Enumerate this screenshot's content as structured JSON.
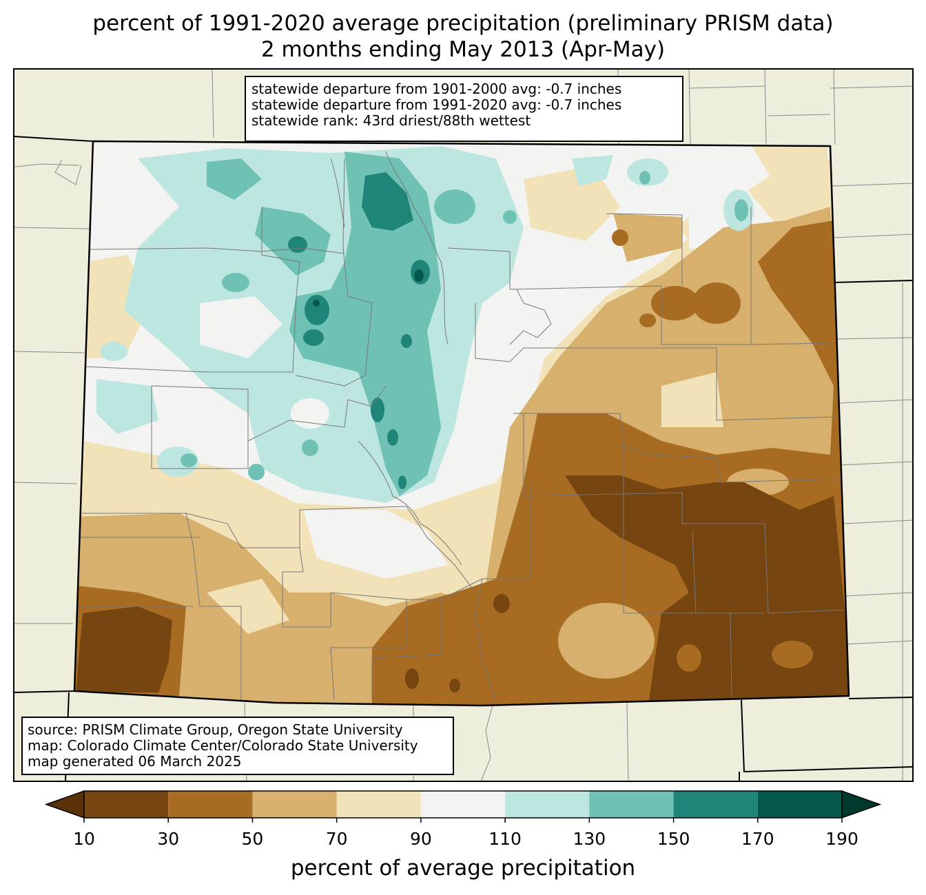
{
  "title": {
    "line1": "percent of 1991-2020 average precipitation (preliminary PRISM data)",
    "line2": "2 months ending May 2013 (Apr-May)"
  },
  "stats_box": {
    "line1": "statewide departure from 1901-2000 avg: -0.7 inches",
    "line2": "statewide departure from 1991-2020 avg: -0.7 inches",
    "line3": "statewide rank: 43rd driest/88th wettest"
  },
  "source_box": {
    "line1": "source: PRISM Climate Group, Oregon State University",
    "line2": "map: Colorado Climate Center/Colorado State University",
    "line3": "map generated 06 March 2025"
  },
  "colorbar": {
    "label": "percent of average precipitation",
    "ticks": [
      "10",
      "30",
      "50",
      "70",
      "90",
      "110",
      "130",
      "150",
      "170",
      "190"
    ],
    "bins": [
      {
        "from": 10,
        "to": 30,
        "color": "#774510"
      },
      {
        "from": 30,
        "to": 50,
        "color": "#a86b22"
      },
      {
        "from": 50,
        "to": 70,
        "color": "#d6b06c"
      },
      {
        "from": 70,
        "to": 90,
        "color": "#f2e2b8"
      },
      {
        "from": 90,
        "to": 110,
        "color": "#f3f4f2"
      },
      {
        "from": 110,
        "to": 130,
        "color": "#bde6e0"
      },
      {
        "from": 130,
        "to": 150,
        "color": "#6fc1b3"
      },
      {
        "from": 150,
        "to": 170,
        "color": "#208579"
      },
      {
        "from": 170,
        "to": 190,
        "color": "#03564a"
      }
    ],
    "under_color": "#5a3208",
    "over_color": "#003a2f"
  },
  "map": {
    "background_color": "#efeddb",
    "region": "Colorado"
  }
}
